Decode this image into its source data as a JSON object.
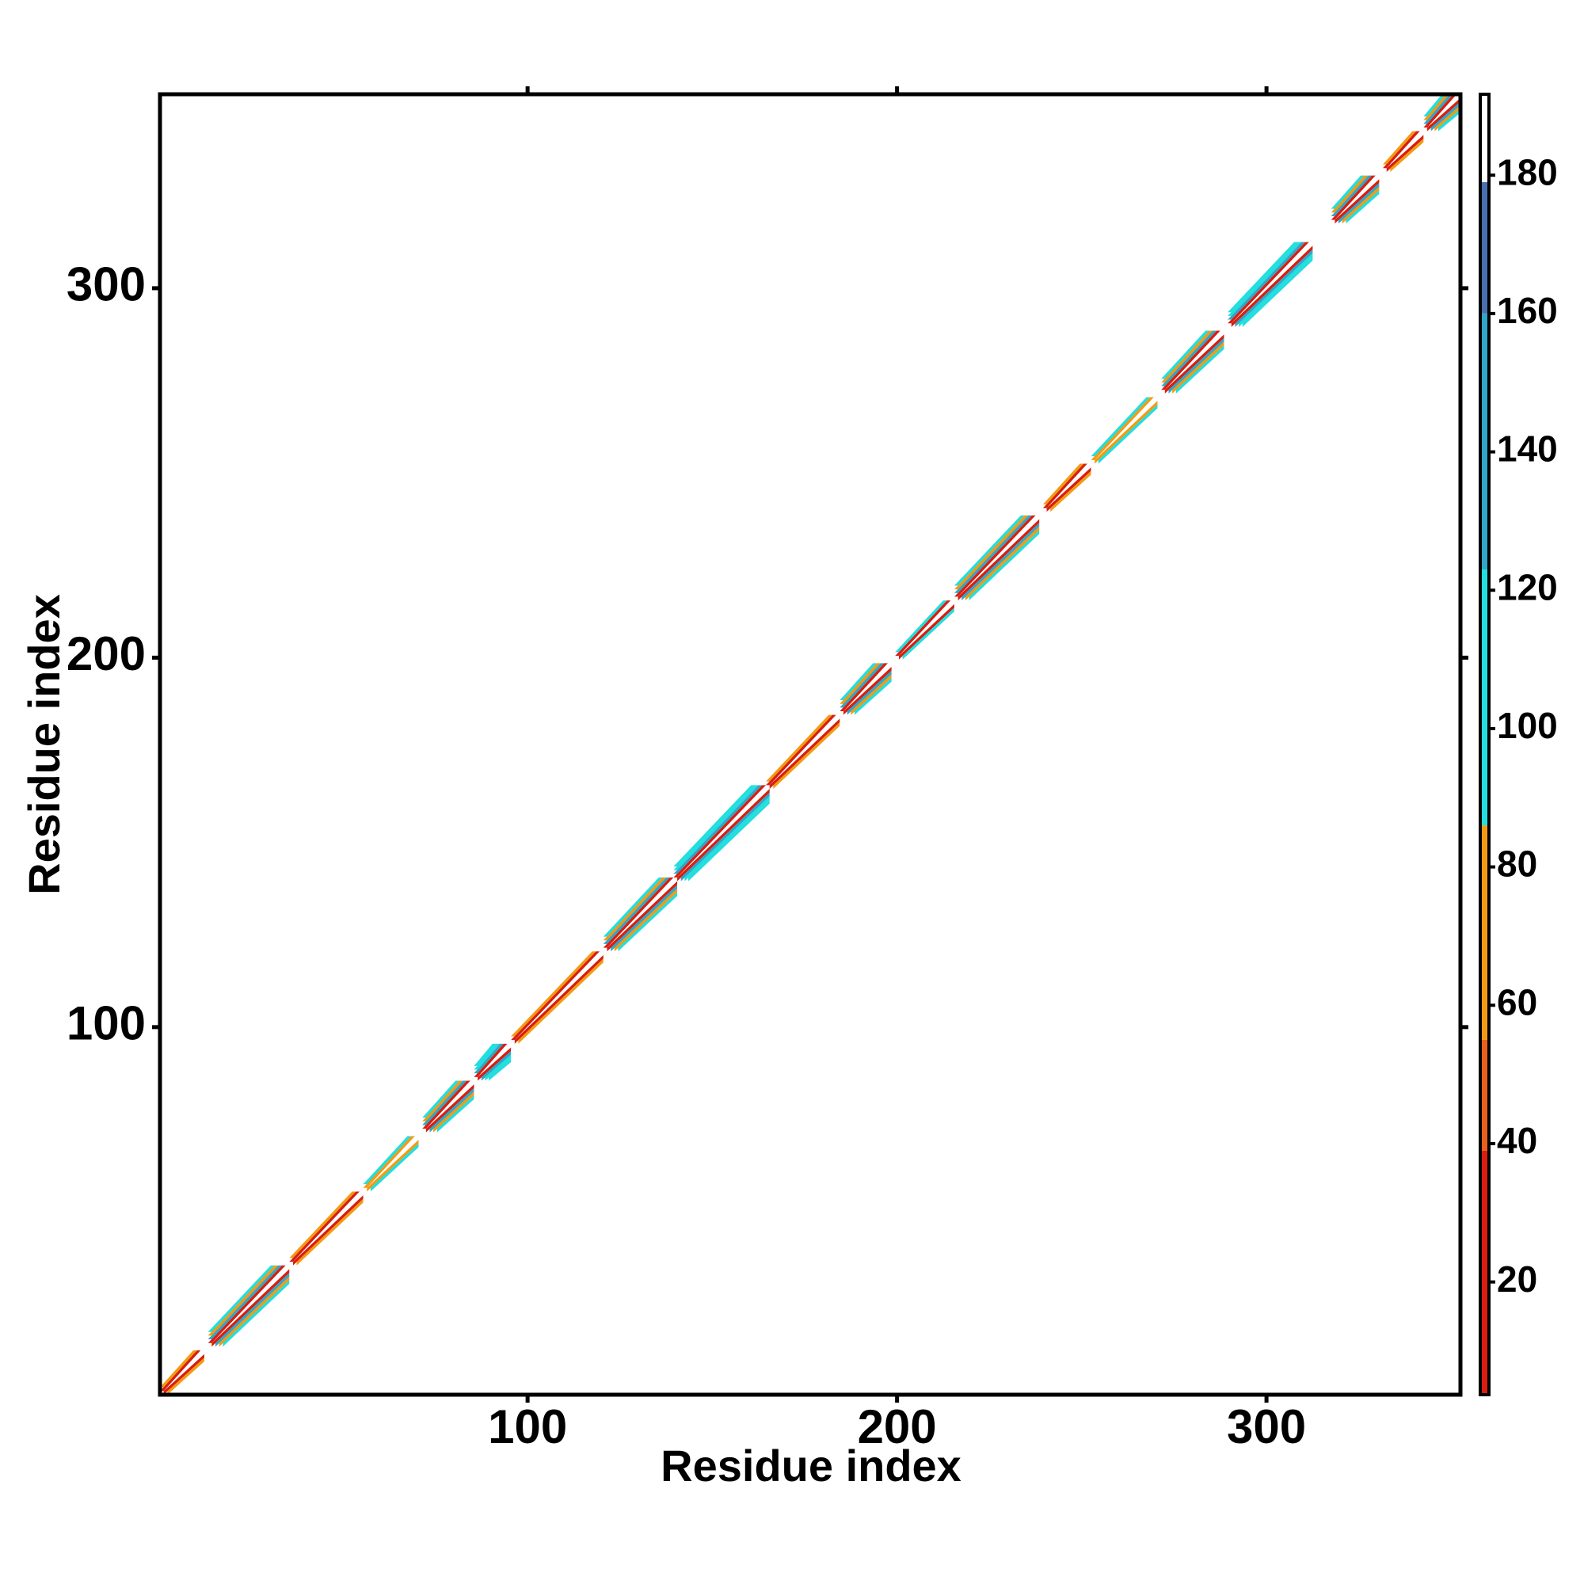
{
  "chart_data": {
    "type": "heatmap",
    "xlabel": "Residue index",
    "ylabel": "Residue index",
    "xlim": [
      0.5,
      352.5
    ],
    "ylim": [
      0.5,
      352.5
    ],
    "xticks": [
      100,
      200,
      300
    ],
    "yticks": [
      100,
      200,
      300
    ],
    "colorbar": {
      "lim": [
        3.7,
        191.7
      ],
      "ticks": [
        20,
        40,
        60,
        80,
        100,
        120,
        140,
        160,
        180
      ],
      "bands": [
        {
          "from": 3.7,
          "to": 39,
          "color": "#d81e10"
        },
        {
          "from": 39,
          "to": 55,
          "color": "#e8601c"
        },
        {
          "from": 55,
          "to": 86,
          "color": "#f39a12"
        },
        {
          "from": 86,
          "to": 123,
          "color": "#22dede"
        },
        {
          "from": 123,
          "to": 160,
          "color": "#31a6c8"
        },
        {
          "from": 160,
          "to": 179,
          "color": "#4a6fae"
        },
        {
          "from": 179,
          "to": 191.7,
          "color": "#ffffff"
        }
      ]
    },
    "segments": [
      {
        "start": 1,
        "end": 12,
        "values": [
          185,
          30,
          70
        ]
      },
      {
        "start": 14,
        "end": 35,
        "values": [
          185,
          20,
          150,
          60,
          100
        ]
      },
      {
        "start": 36,
        "end": 55,
        "values": [
          185,
          30,
          70
        ]
      },
      {
        "start": 56,
        "end": 70,
        "values": [
          185,
          60,
          100
        ]
      },
      {
        "start": 72,
        "end": 85,
        "values": [
          185,
          20,
          150,
          60,
          100
        ]
      },
      {
        "start": 86,
        "end": 95,
        "values": [
          185,
          30,
          160,
          100,
          100
        ]
      },
      {
        "start": 96,
        "end": 120,
        "values": [
          185,
          30,
          70
        ]
      },
      {
        "start": 121,
        "end": 140,
        "values": [
          185,
          20,
          150,
          60,
          100
        ]
      },
      {
        "start": 140,
        "end": 165,
        "values": [
          185,
          30,
          160,
          100,
          100
        ]
      },
      {
        "start": 165,
        "end": 184,
        "values": [
          185,
          30,
          70
        ]
      },
      {
        "start": 185,
        "end": 198,
        "values": [
          185,
          20,
          150,
          60,
          100
        ]
      },
      {
        "start": 200,
        "end": 215,
        "values": [
          185,
          30,
          100
        ]
      },
      {
        "start": 216,
        "end": 238,
        "values": [
          185,
          20,
          150,
          60,
          100
        ]
      },
      {
        "start": 240,
        "end": 252,
        "values": [
          185,
          30,
          70
        ]
      },
      {
        "start": 253,
        "end": 270,
        "values": [
          185,
          60,
          100
        ]
      },
      {
        "start": 272,
        "end": 288,
        "values": [
          185,
          20,
          150,
          60,
          100
        ]
      },
      {
        "start": 290,
        "end": 312,
        "values": [
          185,
          30,
          160,
          100,
          100
        ]
      },
      {
        "start": 318,
        "end": 330,
        "values": [
          185,
          20,
          150,
          60,
          100
        ]
      },
      {
        "start": 332,
        "end": 342,
        "values": [
          185,
          30,
          70
        ]
      },
      {
        "start": 343,
        "end": 352,
        "values": [
          185,
          20,
          150,
          60,
          100
        ]
      }
    ]
  }
}
